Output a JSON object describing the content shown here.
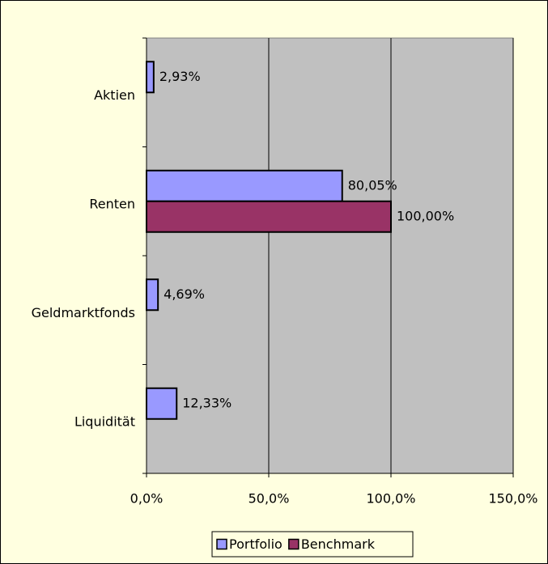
{
  "chart_data": {
    "type": "barh",
    "categories": [
      "Aktien",
      "Renten",
      "Geldmarktfonds",
      "Liquidität"
    ],
    "series": [
      {
        "name": "Portfolio",
        "color": "#9999ff",
        "values": [
          2.93,
          80.05,
          4.69,
          12.33
        ],
        "value_labels": [
          "2,93%",
          "80,05%",
          "4,69%",
          "12,33%"
        ]
      },
      {
        "name": "Benchmark",
        "color": "#993366",
        "values": [
          null,
          100,
          null,
          null
        ],
        "value_labels": [
          null,
          "100,00%",
          null,
          null
        ]
      }
    ],
    "xlim": [
      0,
      150
    ],
    "xticks": [
      {
        "value": 0,
        "label": "0,0%"
      },
      {
        "value": 50,
        "label": "50,0%"
      },
      {
        "value": 100,
        "label": "100,0%"
      },
      {
        "value": 150,
        "label": "150,0%"
      }
    ],
    "grid": true,
    "plot_background": "#c0c0c0",
    "legend": "bottom"
  }
}
